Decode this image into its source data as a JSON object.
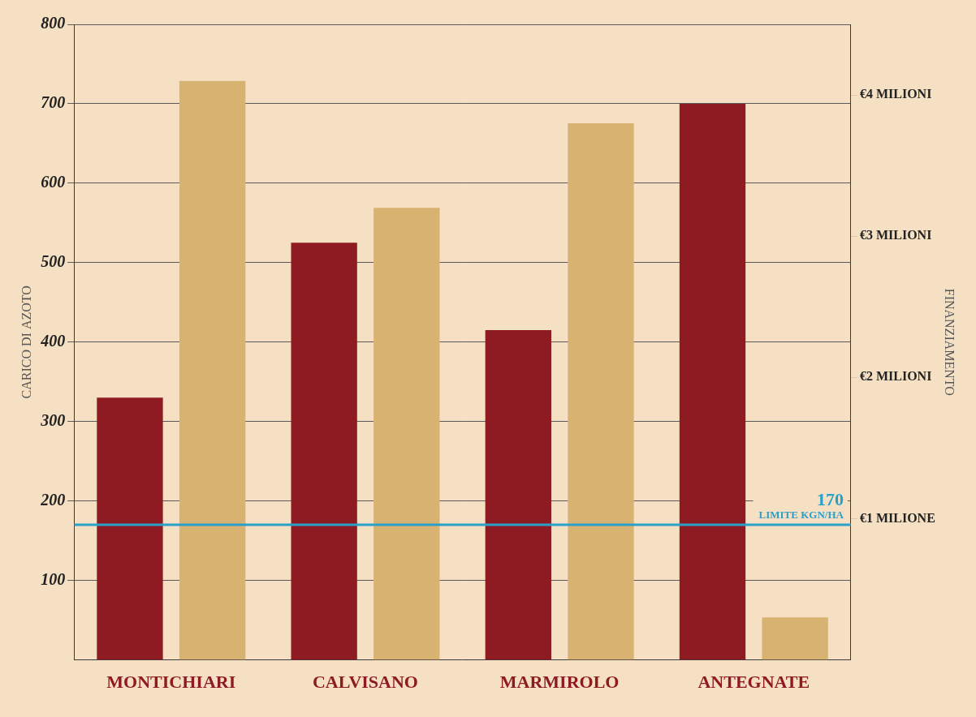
{
  "chart_data": {
    "type": "bar",
    "categories": [
      "MONTICHIARI",
      "CALVISANO",
      "MARMIROLO",
      "ANTEGNATE"
    ],
    "series": [
      {
        "name": "CARICO DI AZOTO",
        "color": "#8e1b22",
        "values": [
          330,
          525,
          415,
          700
        ]
      },
      {
        "name": "FINANZIAMENTO",
        "color": "#d8b271",
        "values": [
          4100000,
          3200000,
          3800000,
          300000
        ],
        "axis": "y2"
      }
    ],
    "ylim": [
      0,
      800
    ],
    "yticks": [
      100,
      200,
      300,
      400,
      500,
      600,
      700,
      800
    ],
    "y2lim": [
      0,
      4500000
    ],
    "y2ticks": [
      {
        "value": 1000000,
        "label": "€1 MILIONE"
      },
      {
        "value": 2000000,
        "label": "€2 MILIONI"
      },
      {
        "value": 3000000,
        "label": "€3 MILIONI"
      },
      {
        "value": 4000000,
        "label": "€4 MILIONI"
      }
    ],
    "limit": {
      "value": 170,
      "label": "LIMITE KGN/HA",
      "color": "#2a9fc9"
    },
    "grid": true
  }
}
